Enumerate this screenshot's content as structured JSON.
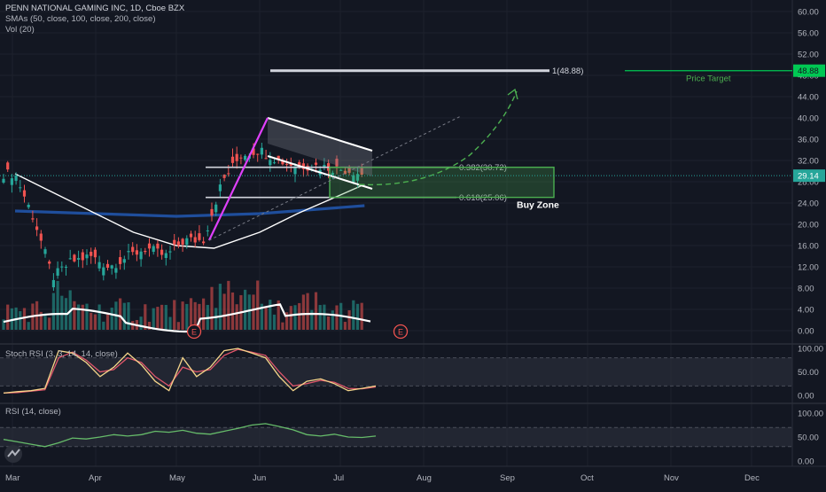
{
  "colors": {
    "bg": "#131722",
    "grid": "#1e222d",
    "text": "#b2b5be",
    "up": "#26a69a",
    "down": "#ef5350",
    "sma_white": "#ffffff",
    "sma_blue": "#1f4e9c",
    "price_target": "#00c853",
    "buy_zone": "#4caf50",
    "rsi": "#66bb6a",
    "stoch_k": "#f5d58a",
    "stoch_d": "#e0566b"
  },
  "legend": {
    "title": "PENN NATIONAL GAMING INC, 1D, Cboe BZX",
    "sma": "SMAs (50, close, 100, close, 200, close)",
    "vol": "Vol (20)",
    "stoch": "Stoch RSI (3, 3, 14, 14, close)",
    "rsi": "RSI (14, close)"
  },
  "annotations": {
    "target_line_label": "1(48.88)",
    "price_target_label": "Price Target",
    "fib_382": "0.382(30.72)",
    "fib_618": "0.618(25.06)",
    "buy_zone_label": "Buy Zone",
    "earnings_marker": "E"
  },
  "price_badges": {
    "target": "48.88",
    "current": "29.14"
  },
  "chart_data": [
    {
      "type": "line",
      "title": "PENN NATIONAL GAMING INC, 1D, Cboe BZX",
      "x_ticks": [
        "Mar",
        "Apr",
        "May",
        "Jun",
        "Jul",
        "Aug",
        "Sep",
        "Oct",
        "Nov",
        "Dec"
      ],
      "y_ticks": [
        "60.00",
        "56.00",
        "52.00",
        "48.00",
        "44.00",
        "40.00",
        "36.00",
        "32.00",
        "28.00",
        "24.00",
        "20.00",
        "16.00",
        "12.00",
        "8.00",
        "4.00",
        "0.00"
      ],
      "ylim": [
        -1,
        61
      ],
      "series": [
        {
          "name": "close",
          "x": [
            "2020-03-02",
            "2020-03-09",
            "2020-03-16",
            "2020-03-23",
            "2020-03-30",
            "2020-04-06",
            "2020-04-13",
            "2020-04-20",
            "2020-04-27",
            "2020-05-04",
            "2020-05-11",
            "2020-05-18",
            "2020-05-25",
            "2020-06-01",
            "2020-06-08",
            "2020-06-15",
            "2020-06-22",
            "2020-06-29",
            "2020-07-06",
            "2020-07-10"
          ],
          "values": [
            29.5,
            21,
            10,
            13,
            14,
            12,
            14,
            15.5,
            14,
            17,
            17,
            28,
            33,
            34,
            32,
            31,
            31,
            30.5,
            30,
            29.14
          ]
        },
        {
          "name": "SMA 50",
          "x": [
            "2020-03-02",
            "2020-03-16",
            "2020-04-01",
            "2020-04-15",
            "2020-05-01",
            "2020-05-15",
            "2020-06-01",
            "2020-06-15",
            "2020-07-01",
            "2020-07-10"
          ],
          "values": [
            29.5,
            26,
            22,
            18.5,
            16,
            15.5,
            18.5,
            22,
            25.5,
            27.5
          ]
        },
        {
          "name": "SMA 200",
          "x": [
            "2020-03-02",
            "2020-04-01",
            "2020-05-01",
            "2020-06-01",
            "2020-07-10"
          ],
          "values": [
            22.5,
            22,
            21.5,
            22,
            23.5
          ]
        }
      ],
      "volume": {
        "name": "Vol (20)",
        "y_ticks": [
          "8.00",
          "4.00",
          "0.00"
        ]
      },
      "levels": [
        {
          "label": "1(48.88)",
          "value": 48.88
        },
        {
          "label": "0.382(30.72)",
          "value": 30.72
        },
        {
          "label": "0.618(25.06)",
          "value": 25.06
        }
      ],
      "buy_zone": {
        "label": "Buy Zone",
        "from": 25.06,
        "to": 30.72
      },
      "price_target": {
        "label": "Price Target",
        "value": 48.88
      }
    },
    {
      "type": "line",
      "title": "Stoch RSI (3, 3, 14, 14, close)",
      "y_ticks": [
        "100.00",
        "50.00",
        "0.00"
      ],
      "ylim": [
        0,
        100
      ],
      "series": [
        {
          "name": "K",
          "values": [
            5,
            8,
            10,
            15,
            95,
            90,
            70,
            40,
            60,
            90,
            65,
            30,
            10,
            80,
            40,
            60,
            95,
            100,
            90,
            80,
            40,
            10,
            30,
            35,
            25,
            10,
            15,
            20
          ]
        },
        {
          "name": "D",
          "values": [
            5,
            6,
            9,
            12,
            80,
            92,
            75,
            50,
            55,
            80,
            70,
            40,
            20,
            60,
            50,
            55,
            85,
            98,
            92,
            85,
            50,
            20,
            25,
            32,
            28,
            15,
            14,
            18
          ]
        }
      ]
    },
    {
      "type": "line",
      "title": "RSI (14, close)",
      "y_ticks": [
        "100.00",
        "50.00",
        "0.00"
      ],
      "ylim": [
        0,
        100
      ],
      "series": [
        {
          "name": "RSI",
          "values": [
            45,
            40,
            35,
            30,
            38,
            48,
            46,
            50,
            55,
            52,
            55,
            62,
            60,
            64,
            58,
            56,
            62,
            68,
            75,
            78,
            72,
            65,
            55,
            52,
            56,
            50,
            49,
            52
          ]
        }
      ]
    }
  ]
}
